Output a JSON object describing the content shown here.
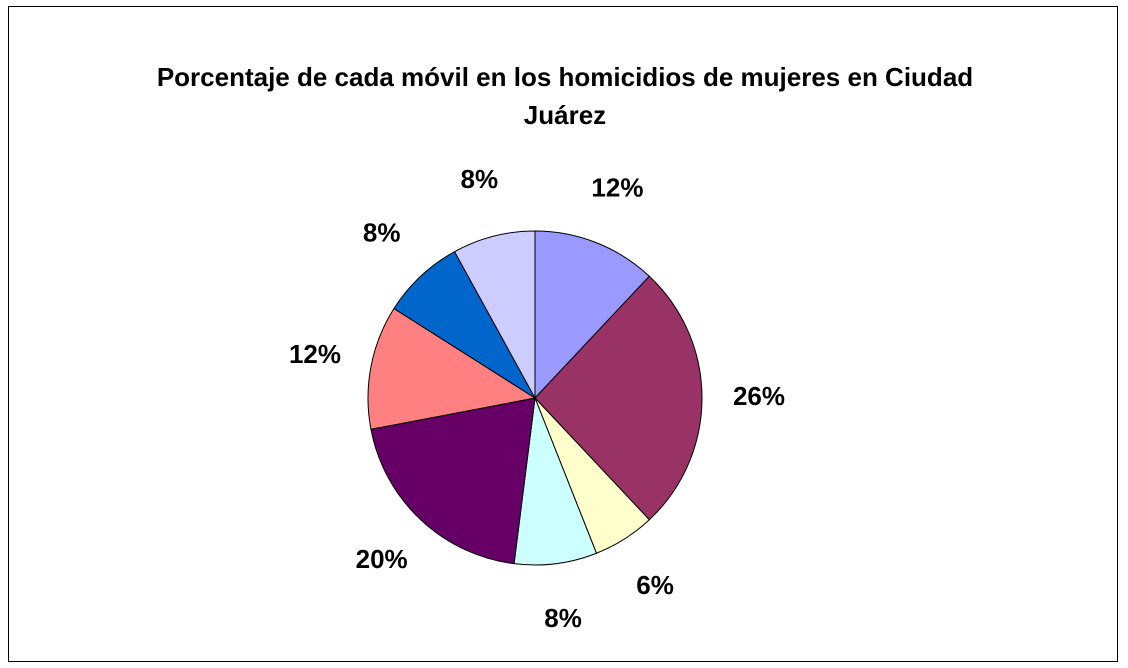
{
  "chart_data": {
    "type": "pie",
    "title": "Porcentaje de cada móvil en los homicidios de mujeres en Ciudad Juárez",
    "values": [
      12,
      26,
      6,
      8,
      20,
      12,
      8,
      8
    ],
    "value_labels": [
      "12%",
      "26%",
      "6%",
      "8%",
      "20%",
      "12%",
      "8%",
      "8%"
    ],
    "colors": [
      "#9999ff",
      "#993366",
      "#ffffcc",
      "#ccffff",
      "#660066",
      "#ff8080",
      "#0066cc",
      "#ccccff"
    ]
  }
}
